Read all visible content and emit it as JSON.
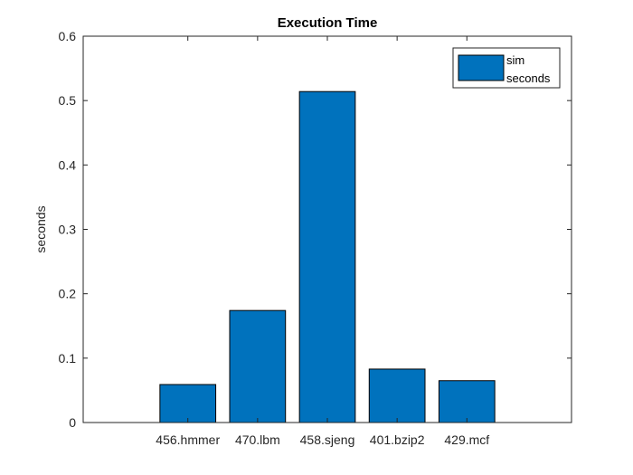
{
  "chart_data": {
    "type": "bar",
    "title": "Execution Time",
    "xlabel": "",
    "ylabel": "seconds",
    "categories": [
      "456.hmmer",
      "470.lbm",
      "458.sjeng",
      "401.bzip2",
      "429.mcf"
    ],
    "series": [
      {
        "name": "sim seconds",
        "legend_lines": [
          "sim",
          "seconds"
        ],
        "values": [
          0.059,
          0.174,
          0.514,
          0.083,
          0.065
        ],
        "color": "#0072bd"
      }
    ],
    "ylim": [
      0,
      0.6
    ],
    "yticks": [
      0,
      0.1,
      0.2,
      0.3,
      0.4,
      0.5,
      0.6
    ],
    "ytick_labels": [
      "0",
      "0.1",
      "0.2",
      "0.3",
      "0.4",
      "0.5",
      "0.6"
    ],
    "grid": false,
    "legend_position": "top-right"
  }
}
